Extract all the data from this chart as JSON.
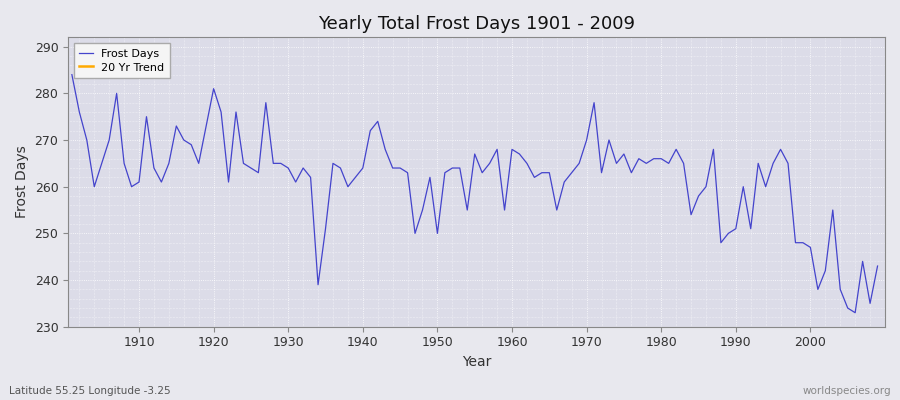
{
  "title": "Yearly Total Frost Days 1901 - 2009",
  "xlabel": "Year",
  "ylabel": "Frost Days",
  "footnote_left": "Latitude 55.25 Longitude -3.25",
  "footnote_right": "worldspecies.org",
  "line_color": "#4444cc",
  "trend_color": "#ffaa00",
  "bg_color": "#e8e8ee",
  "plot_bg_color": "#dcdce8",
  "grid_color": "#ffffff",
  "ylim": [
    230,
    292
  ],
  "yticks": [
    230,
    240,
    250,
    260,
    270,
    280,
    290
  ],
  "xlim": [
    1900.5,
    2010
  ],
  "xticks": [
    1910,
    1920,
    1930,
    1940,
    1950,
    1960,
    1970,
    1980,
    1990,
    2000
  ],
  "legend_labels": [
    "Frost Days",
    "20 Yr Trend"
  ],
  "years": [
    1901,
    1902,
    1903,
    1904,
    1905,
    1906,
    1907,
    1908,
    1909,
    1910,
    1911,
    1912,
    1913,
    1914,
    1915,
    1916,
    1917,
    1918,
    1919,
    1920,
    1921,
    1922,
    1923,
    1924,
    1925,
    1926,
    1927,
    1928,
    1929,
    1930,
    1931,
    1932,
    1933,
    1934,
    1935,
    1936,
    1937,
    1938,
    1939,
    1940,
    1941,
    1942,
    1943,
    1944,
    1945,
    1946,
    1947,
    1948,
    1949,
    1950,
    1951,
    1952,
    1953,
    1954,
    1955,
    1956,
    1957,
    1958,
    1959,
    1960,
    1961,
    1962,
    1963,
    1964,
    1965,
    1966,
    1967,
    1968,
    1969,
    1970,
    1971,
    1972,
    1973,
    1974,
    1975,
    1976,
    1977,
    1978,
    1979,
    1980,
    1981,
    1982,
    1983,
    1984,
    1985,
    1986,
    1987,
    1988,
    1989,
    1990,
    1991,
    1992,
    1993,
    1994,
    1995,
    1996,
    1997,
    1998,
    1999,
    2000,
    2001,
    2002,
    2003,
    2004,
    2005,
    2006,
    2007,
    2008,
    2009
  ],
  "frost_days": [
    284,
    276,
    270,
    260,
    265,
    270,
    280,
    265,
    260,
    261,
    275,
    264,
    261,
    265,
    273,
    270,
    269,
    265,
    273,
    281,
    276,
    261,
    276,
    265,
    264,
    263,
    278,
    265,
    265,
    264,
    261,
    264,
    262,
    239,
    251,
    265,
    264,
    260,
    262,
    264,
    272,
    274,
    268,
    264,
    264,
    263,
    250,
    255,
    262,
    250,
    263,
    264,
    264,
    255,
    267,
    263,
    265,
    268,
    255,
    268,
    267,
    265,
    262,
    263,
    263,
    255,
    261,
    263,
    265,
    270,
    278,
    263,
    270,
    265,
    267,
    263,
    266,
    265,
    266,
    266,
    265,
    268,
    265,
    254,
    258,
    260,
    268,
    248,
    250,
    251,
    260,
    251,
    265,
    260,
    265,
    268,
    265,
    248,
    248,
    247,
    238,
    242,
    255,
    238,
    234,
    233,
    244,
    235,
    243
  ]
}
